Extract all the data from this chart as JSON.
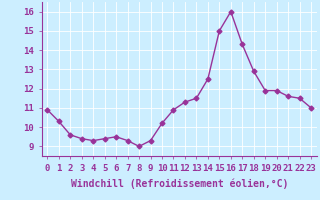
{
  "x": [
    0,
    1,
    2,
    3,
    4,
    5,
    6,
    7,
    8,
    9,
    10,
    11,
    12,
    13,
    14,
    15,
    16,
    17,
    18,
    19,
    20,
    21,
    22,
    23
  ],
  "y": [
    10.9,
    10.3,
    9.6,
    9.4,
    9.3,
    9.4,
    9.5,
    9.3,
    9.0,
    9.3,
    10.2,
    10.9,
    11.3,
    11.5,
    12.5,
    15.0,
    16.0,
    14.3,
    12.9,
    11.9,
    11.9,
    11.6,
    11.5,
    11.0
  ],
  "line_color": "#993399",
  "marker": "D",
  "marker_size": 2.5,
  "line_width": 1.0,
  "bg_color": "#cceeff",
  "grid_color": "#ffffff",
  "xlabel": "Windchill (Refroidissement éolien,°C)",
  "xlabel_color": "#993399",
  "tick_color": "#993399",
  "spine_color": "#993399",
  "ylim": [
    8.5,
    16.5
  ],
  "xlim": [
    -0.5,
    23.5
  ],
  "yticks": [
    9,
    10,
    11,
    12,
    13,
    14,
    15,
    16
  ],
  "xticks": [
    0,
    1,
    2,
    3,
    4,
    5,
    6,
    7,
    8,
    9,
    10,
    11,
    12,
    13,
    14,
    15,
    16,
    17,
    18,
    19,
    20,
    21,
    22,
    23
  ],
  "font_size_ticks": 6.5,
  "font_size_label": 7
}
